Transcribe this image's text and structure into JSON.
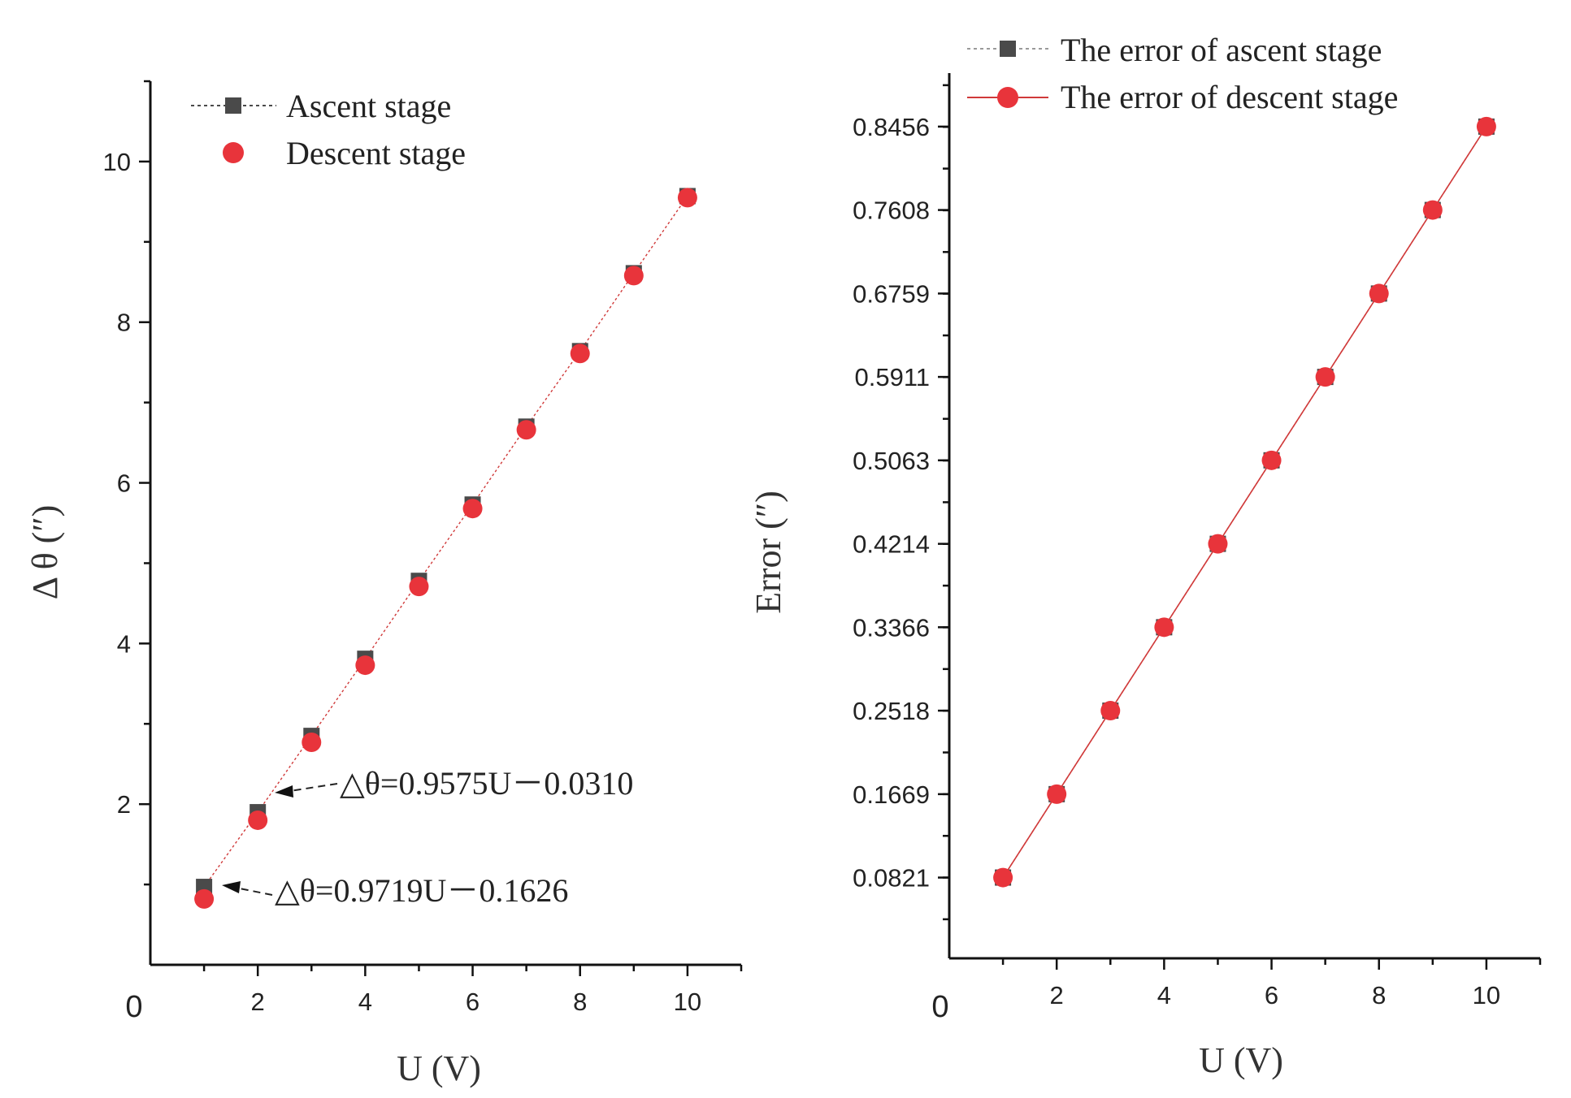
{
  "colors": {
    "ascent": "#4a4a4a",
    "descent": "#e8343b",
    "descent_line": "#d03a3a",
    "axis": "#111111"
  },
  "chart_data": [
    {
      "type": "scatter",
      "xlabel": "U (V)",
      "ylabel": "Δ θ (″)",
      "origin_label": "0",
      "xlim": [
        0,
        11
      ],
      "ylim": [
        0,
        11
      ],
      "xticks": [
        2,
        4,
        6,
        8,
        10
      ],
      "yticks": [
        2,
        4,
        6,
        8,
        10
      ],
      "series": [
        {
          "name": "Ascent stage",
          "marker": "square",
          "line": "dotted",
          "x": [
            1,
            2,
            3,
            4,
            5,
            6,
            7,
            8,
            9,
            10
          ],
          "y": [
            0.97,
            1.9,
            2.85,
            3.81,
            4.78,
            5.73,
            6.7,
            7.64,
            8.61,
            9.57
          ]
        },
        {
          "name": "Descent stage",
          "marker": "circle",
          "line": "none",
          "x": [
            1,
            2,
            3,
            4,
            5,
            6,
            7,
            8,
            9,
            10
          ],
          "y": [
            0.82,
            1.8,
            2.77,
            3.73,
            4.71,
            5.68,
            6.66,
            7.61,
            8.58,
            9.55
          ]
        }
      ],
      "annotations": [
        {
          "text": "△θ=0.9575U－0.0310",
          "x": 2,
          "y": 1.9
        },
        {
          "text": "△θ=0.9719U－0.1626",
          "x": 1,
          "y": 0.97
        }
      ],
      "legend": "top-left"
    },
    {
      "type": "line",
      "xlabel": "U (V)",
      "ylabel": "Error (″)",
      "origin_label": "0",
      "xlim": [
        0,
        11
      ],
      "ylim": [
        0,
        0.9
      ],
      "xticks": [
        2,
        4,
        6,
        8,
        10
      ],
      "yticks": [
        0.0821,
        0.1669,
        0.2518,
        0.3366,
        0.4214,
        0.5063,
        0.5911,
        0.6759,
        0.7608,
        0.8456
      ],
      "ytick_labels": [
        "0.0821",
        "0.1669",
        "0.2518",
        "0.3366",
        "0.4214",
        "0.5063",
        "0.5911",
        "0.6759",
        "0.7608",
        "0.8456"
      ],
      "series": [
        {
          "name": "The error of ascent stage",
          "marker": "square",
          "line": "dotted",
          "x": [
            1,
            2,
            3,
            4,
            5,
            6,
            7,
            8,
            9,
            10
          ],
          "y": [
            0.0821,
            0.1669,
            0.2518,
            0.3366,
            0.4214,
            0.5063,
            0.5911,
            0.6759,
            0.7608,
            0.8456
          ]
        },
        {
          "name": "The error of descent stage",
          "marker": "circle",
          "line": "solid",
          "x": [
            1,
            2,
            3,
            4,
            5,
            6,
            7,
            8,
            9,
            10
          ],
          "y": [
            0.0821,
            0.1669,
            0.2518,
            0.3366,
            0.4214,
            0.5063,
            0.5911,
            0.6759,
            0.7608,
            0.8456
          ]
        }
      ],
      "legend": "top-left"
    }
  ]
}
